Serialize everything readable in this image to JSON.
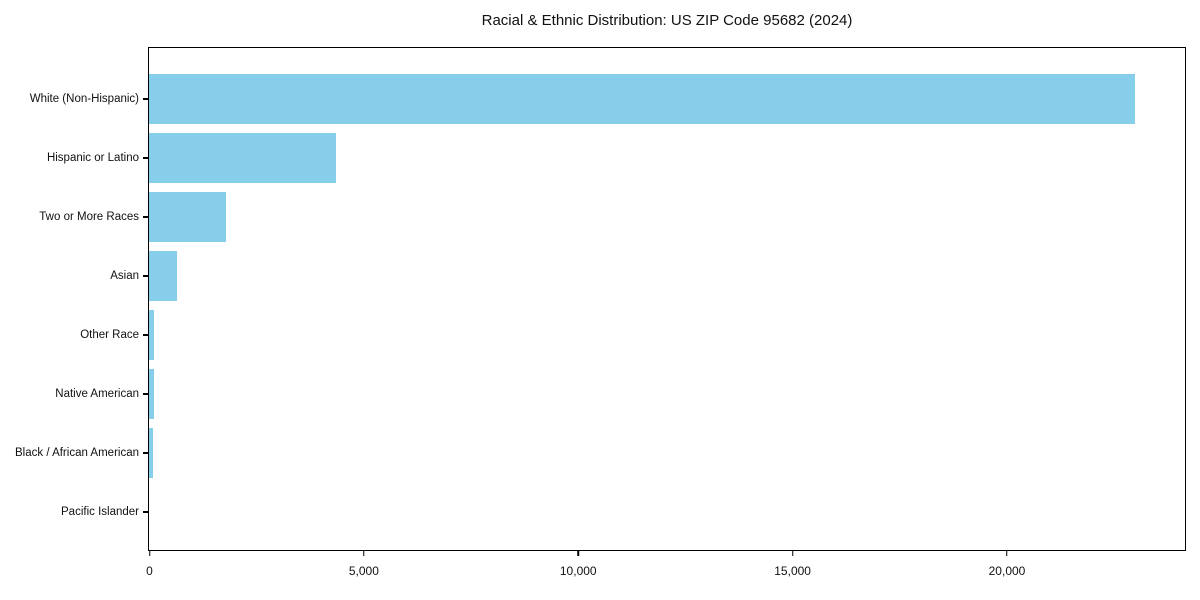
{
  "page": {
    "background": "#ffffff"
  },
  "chart_data": {
    "type": "bar",
    "orientation": "horizontal",
    "title": "Racial & Ethnic Distribution: US ZIP Code 95682 (2024)",
    "categories": [
      "White (Non-Hispanic)",
      "Hispanic or Latino",
      "Two or More Races",
      "Asian",
      "Other Race",
      "Native American",
      "Black / African American",
      "Pacific Islander"
    ],
    "values": [
      22970,
      4350,
      1790,
      660,
      125,
      120,
      95,
      0
    ],
    "xlabel": "",
    "ylabel": "",
    "xlim": [
      0,
      24140
    ],
    "xticks": [
      0,
      5000,
      10000,
      15000,
      20000
    ],
    "xtick_labels": [
      "0",
      "5,000",
      "10,000",
      "15,000",
      "20,000"
    ],
    "bar_color": "#87CEEB",
    "axis_color": "#000000",
    "text_color": "#111111",
    "grid": false,
    "legend": null
  }
}
